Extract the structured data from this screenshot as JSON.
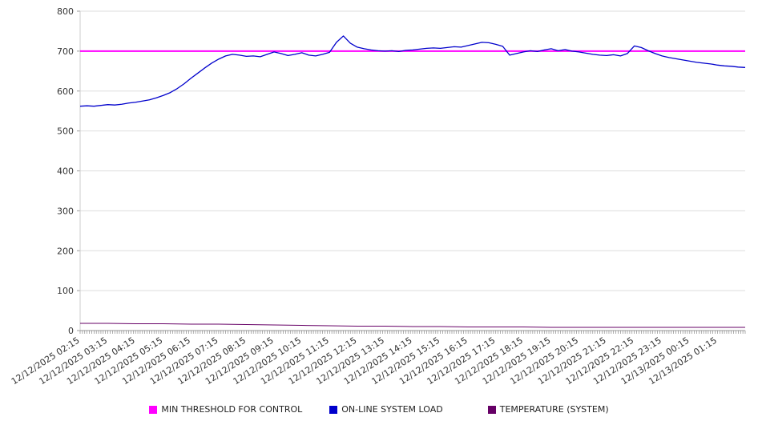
{
  "chart_data": {
    "type": "line",
    "title": "",
    "xlabel": "",
    "ylabel": "",
    "ylim": [
      0,
      800
    ],
    "y_ticks": [
      0,
      100,
      200,
      300,
      400,
      500,
      600,
      700,
      800
    ],
    "grid": true,
    "legend_position": "bottom",
    "x_domain_minutes": [
      0,
      1440
    ],
    "x_label_step_min": 60,
    "x_minor_tick_min": 5,
    "x_tick_labels": [
      "12/12/2025 02:15",
      "12/12/2025 03:15",
      "12/12/2025 04:15",
      "12/12/2025 05:15",
      "12/12/2025 06:15",
      "12/12/2025 07:15",
      "12/12/2025 08:15",
      "12/12/2025 09:15",
      "12/12/2025 10:15",
      "12/12/2025 11:15",
      "12/12/2025 12:15",
      "12/12/2025 13:15",
      "12/12/2025 14:15",
      "12/12/2025 15:15",
      "12/12/2025 16:15",
      "12/12/2025 17:15",
      "12/12/2025 18:15",
      "12/12/2025 19:15",
      "12/12/2025 20:15",
      "12/12/2025 21:15",
      "12/12/2025 22:15",
      "12/12/2025 23:15",
      "12/13/2025 00:15",
      "12/13/2025 01:15"
    ],
    "series": [
      {
        "name": "MIN THRESHOLD FOR CONTROL",
        "color": "#ff00ff",
        "line_width": 2,
        "constant_value": 700
      },
      {
        "name": "ON-LINE SYSTEM LOAD",
        "color": "#0000cc",
        "line_width": 1.3,
        "step_min": 15,
        "values": [
          562,
          563,
          562,
          564,
          566,
          565,
          567,
          570,
          572,
          575,
          578,
          583,
          589,
          596,
          606,
          618,
          632,
          645,
          658,
          670,
          680,
          688,
          692,
          690,
          687,
          688,
          686,
          692,
          698,
          694,
          689,
          692,
          696,
          690,
          688,
          692,
          697,
          722,
          738,
          720,
          710,
          706,
          703,
          701,
          700,
          701,
          699,
          702,
          703,
          705,
          707,
          708,
          707,
          709,
          711,
          710,
          714,
          718,
          722,
          721,
          717,
          712,
          690,
          694,
          698,
          701,
          699,
          703,
          706,
          701,
          704,
          700,
          698,
          695,
          692,
          690,
          689,
          691,
          688,
          694,
          713,
          709,
          701,
          694,
          688,
          684,
          681,
          678,
          675,
          672,
          670,
          668,
          665,
          663,
          662,
          660,
          659
        ]
      },
      {
        "name": "TEMPERATURE (SYSTEM)",
        "color": "#660066",
        "line_width": 1,
        "step_min": 60,
        "values": [
          18,
          18,
          17,
          17,
          16,
          16,
          15,
          14,
          13,
          12,
          11,
          11,
          10,
          10,
          9,
          9,
          9,
          8,
          8,
          8,
          8,
          8,
          8,
          8,
          8
        ]
      }
    ]
  }
}
